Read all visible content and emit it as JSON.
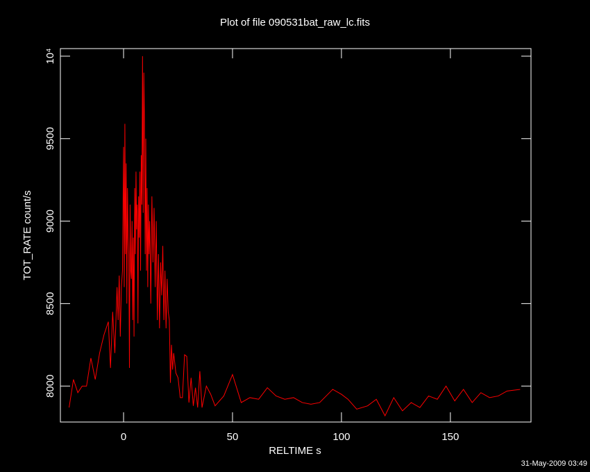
{
  "chart_data": {
    "type": "line",
    "title": "Plot of file 090531bat_raw_lc.fits",
    "x_label": "RELTIME  s",
    "y_label": "TOT_RATE  count/s",
    "timestamp": "31-May-2009 03:49",
    "xlim": [
      -29,
      187
    ],
    "ylim": [
      7782,
      10046
    ],
    "xticks": [
      0,
      50,
      100,
      150
    ],
    "yticks": [
      8000,
      8500,
      9000,
      9500,
      {
        "value": 10000,
        "label": "10⁴"
      }
    ],
    "x": [
      -25,
      -23,
      -21,
      -19,
      -17,
      -15,
      -13,
      -11,
      -9,
      -7,
      -6,
      -5,
      -4,
      -3,
      -2.5,
      -2,
      -1.5,
      -1,
      -0.5,
      0,
      0.3,
      0.6,
      0.9,
      1.2,
      1.5,
      1.8,
      2.1,
      2.4,
      2.7,
      3,
      3.3,
      3.6,
      3.9,
      4.2,
      4.5,
      4.8,
      5.1,
      5.4,
      5.7,
      6,
      6.3,
      6.6,
      6.9,
      7.2,
      7.5,
      7.8,
      8.1,
      8.4,
      8.7,
      9,
      9.3,
      9.6,
      9.9,
      10.2,
      10.5,
      10.8,
      11.1,
      11.4,
      11.7,
      12,
      12.5,
      13,
      13.5,
      14,
      14.5,
      15,
      15.5,
      16,
      16.5,
      17,
      17.5,
      18,
      18.5,
      19,
      19.5,
      20,
      20.5,
      21,
      21.5,
      22,
      22.5,
      23,
      24,
      25,
      26,
      27,
      28,
      29,
      30,
      31,
      32,
      33,
      34,
      35,
      36,
      38,
      40,
      42,
      46,
      50,
      54,
      58,
      62,
      66,
      70,
      74,
      78,
      82,
      86,
      90,
      96,
      100,
      103,
      107,
      112,
      116,
      120,
      124,
      128,
      132,
      136,
      140,
      144,
      148,
      152,
      156,
      160,
      164,
      168,
      172,
      176,
      182
    ],
    "series": [
      {
        "color": "#ff0000",
        "values": [
          7870,
          8040,
          7960,
          8000,
          8000,
          8170,
          8040,
          8200,
          8310,
          8390,
          8110,
          8450,
          8200,
          8600,
          8400,
          8670,
          8300,
          8600,
          8700,
          9450,
          8600,
          9590,
          8800,
          9350,
          8500,
          9200,
          8900,
          8800,
          8110,
          9100,
          8700,
          8650,
          9000,
          8400,
          8900,
          8300,
          9200,
          8800,
          9300,
          8950,
          9100,
          8380,
          9150,
          8900,
          9300,
          8700,
          9400,
          9100,
          10000,
          9050,
          9900,
          9600,
          8800,
          9500,
          8700,
          9200,
          8600,
          9100,
          8800,
          9000,
          8500,
          9150,
          8750,
          9080,
          8600,
          9000,
          8400,
          8800,
          8350,
          8750,
          8550,
          8850,
          8400,
          8700,
          8350,
          8650,
          8450,
          8400,
          8020,
          8250,
          8100,
          8200,
          8080,
          8050,
          7930,
          7930,
          8190,
          8180,
          7900,
          8050,
          7880,
          7990,
          7870,
          8090,
          7870,
          8000,
          7950,
          7880,
          7940,
          8070,
          7900,
          7930,
          7920,
          7990,
          7940,
          7920,
          7930,
          7900,
          7890,
          7900,
          7980,
          7950,
          7920,
          7860,
          7880,
          7920,
          7820,
          7930,
          7850,
          7900,
          7870,
          7940,
          7920,
          8000,
          7910,
          7980,
          7900,
          7960,
          7930,
          7940,
          7970,
          7980
        ]
      }
    ]
  }
}
